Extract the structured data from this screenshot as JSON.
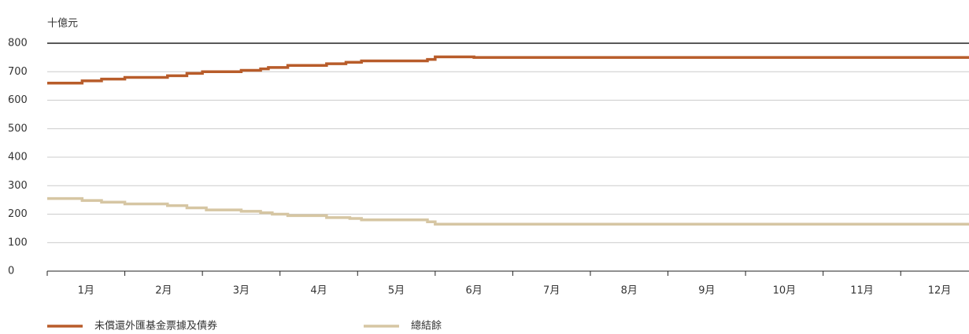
{
  "chart_data": {
    "type": "line",
    "step": true,
    "y_axis_label": "十億元",
    "xlim": [
      0,
      11.88
    ],
    "xticks": [
      {
        "value": 0.5,
        "label": "1月"
      },
      {
        "value": 1.5,
        "label": "2月"
      },
      {
        "value": 2.5,
        "label": "3月"
      },
      {
        "value": 3.5,
        "label": "4月"
      },
      {
        "value": 4.5,
        "label": "5月"
      },
      {
        "value": 5.5,
        "label": "6月"
      },
      {
        "value": 6.5,
        "label": "7月"
      },
      {
        "value": 7.5,
        "label": "8月"
      },
      {
        "value": 8.5,
        "label": "9月"
      },
      {
        "value": 9.5,
        "label": "10月"
      },
      {
        "value": 10.5,
        "label": "11月"
      },
      {
        "value": 11.5,
        "label": "12月"
      }
    ],
    "ylim": [
      0,
      800
    ],
    "yticks": [
      0,
      100,
      200,
      300,
      400,
      500,
      600,
      700,
      800
    ],
    "grid": true,
    "series": [
      {
        "name": "未償還外匯基金票據及債券",
        "color": "#b85c2a",
        "x": [
          0,
          0.45,
          0.7,
          1.0,
          1.55,
          1.8,
          2.0,
          2.5,
          2.75,
          2.85,
          3.1,
          3.6,
          3.85,
          4.05,
          4.9,
          5.0,
          5.5,
          11.88
        ],
        "values": [
          660,
          668,
          674,
          680,
          686,
          694,
          700,
          705,
          710,
          715,
          722,
          728,
          733,
          738,
          743,
          752,
          750,
          750
        ]
      },
      {
        "name": "總結餘",
        "color": "#d6c6a3",
        "x": [
          0,
          0.45,
          0.7,
          1.0,
          1.55,
          1.8,
          2.05,
          2.5,
          2.75,
          2.9,
          3.1,
          3.6,
          3.9,
          4.05,
          4.9,
          5.0,
          11.88
        ],
        "values": [
          255,
          248,
          242,
          236,
          230,
          222,
          215,
          210,
          205,
          200,
          195,
          188,
          185,
          180,
          173,
          165,
          165
        ]
      }
    ]
  }
}
